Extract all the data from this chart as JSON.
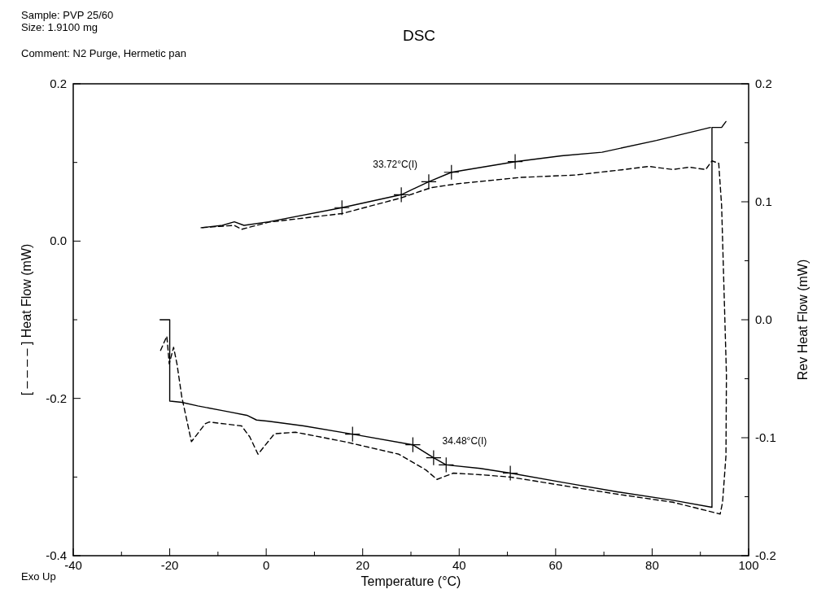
{
  "chart_data": {
    "type": "line",
    "title": "DSC",
    "annotations": [
      "Sample: PVP 25/60",
      "Size:  1.9100 mg",
      "Comment: N2 Purge, Hermetic pan",
      "Exo Up",
      {
        "text": "33.72°C(I)",
        "x": 33.72,
        "y": 0.0745
      },
      {
        "text": "34.48°C(I)",
        "x": 34.48,
        "y": -0.275
      }
    ],
    "xlabel": "Temperature (°C)",
    "ylabel": "[ – – – – ] Heat Flow (mW)",
    "y2label": "Rev Heat Flow (mW)",
    "xlim": [
      -40,
      100
    ],
    "xticks": [
      -40,
      {
        "value": -30,
        "label": null
      },
      -20,
      {
        "value": -10,
        "label": null
      },
      0,
      {
        "value": 10,
        "label": null
      },
      20,
      {
        "value": 30,
        "label": null
      },
      40,
      {
        "value": 50,
        "label": null
      },
      60,
      {
        "value": 70,
        "label": null
      },
      80,
      {
        "value": 90,
        "label": null
      },
      100
    ],
    "ylim": [
      -0.4,
      0.2
    ],
    "yticks": [
      -0.4,
      {
        "value": -0.3,
        "label": null
      },
      -0.2,
      {
        "value": -0.1,
        "label": null
      },
      {
        "value": 0,
        "label": "0.0"
      },
      {
        "value": 0.1,
        "label": null
      },
      0.2
    ],
    "y2lim": [
      -0.2,
      0.2
    ],
    "y2ticks": [
      -0.2,
      {
        "value": -0.15,
        "label": null
      },
      -0.1,
      {
        "value": -0.05,
        "label": null
      },
      {
        "value": 0,
        "label": "0.0"
      },
      {
        "value": 0.05,
        "label": null
      },
      0.1,
      {
        "value": 0.15,
        "label": null
      },
      0.2
    ],
    "grid": false,
    "marker": "none",
    "series": [
      {
        "color": "#000000",
        "axis": "y2",
        "line_style": "solid",
        "x": [
          -22,
          -20,
          -20,
          -19.9,
          -17.5,
          -14.2,
          -9.1,
          -4,
          -2,
          0.5,
          7.8,
          17.9,
          30.4,
          34.7,
          37.3,
          44.4,
          50.6,
          61.7,
          73,
          84.3,
          92.4,
          92.4,
          94.4,
          95.3,
          null,
          -13.5,
          -9.1,
          -6.6,
          -4.6,
          0.5,
          15.7,
          28,
          33.7,
          38.4,
          51.6,
          61.2,
          69.6,
          80.9,
          92.1
        ],
        "values": [
          0,
          0,
          -0.069,
          -0.069,
          -0.07,
          -0.073,
          -0.077,
          -0.081,
          -0.085,
          -0.086,
          -0.09,
          -0.097,
          -0.106,
          -0.117,
          -0.123,
          -0.126,
          -0.13,
          -0.138,
          -0.146,
          -0.153,
          -0.159,
          0.163,
          0.163,
          0.168,
          null,
          0.078,
          0.08,
          0.083,
          0.08,
          0.083,
          0.095,
          0.106,
          0.117,
          0.125,
          0.134,
          0.139,
          0.142,
          0.152,
          0.163
        ]
      },
      {
        "color": "#000000",
        "axis": "y",
        "line_style": "dashed",
        "x": [
          -21.9,
          -20.6,
          -20.1,
          -19.2,
          -18.5,
          -17.5,
          -15.5,
          -12.6,
          -11.8,
          -5.1,
          -3.4,
          -1.7,
          1.7,
          6.1,
          16.2,
          27.5,
          33.1,
          35.4,
          38.8,
          44.4,
          50.6,
          61.7,
          73,
          84.3,
          94.1,
          94.6,
          95.3,
          95.4,
          94.4,
          93.8,
          92.4,
          91.1,
          87.7,
          84.3,
          79.3,
          74.2,
          64.1,
          52.8,
          39.8,
          34.2,
          28,
          15.7,
          0.5,
          -5.1,
          -6.6,
          -13.5
        ],
        "values": [
          -0.139,
          -0.121,
          -0.156,
          -0.135,
          -0.156,
          -0.198,
          -0.255,
          -0.232,
          -0.23,
          -0.235,
          -0.249,
          -0.271,
          -0.245,
          -0.243,
          -0.255,
          -0.271,
          -0.291,
          -0.303,
          -0.295,
          -0.297,
          -0.3,
          -0.311,
          -0.322,
          -0.332,
          -0.347,
          -0.332,
          -0.273,
          -0.17,
          0.045,
          0.099,
          0.102,
          0.091,
          0.094,
          0.091,
          0.095,
          0.091,
          0.084,
          0.081,
          0.073,
          0.068,
          0.055,
          0.035,
          0.024,
          0.015,
          0.02,
          0.017
        ]
      },
      {
        "type": "scatter",
        "marker": "cross",
        "color": "#000000",
        "axis": "y2",
        "x": [
          15.7,
          28,
          33.7,
          38.4,
          51.6,
          17.9,
          30.4,
          34.7,
          37.3,
          50.6
        ],
        "values": [
          0.095,
          0.106,
          0.117,
          0.125,
          0.134,
          -0.097,
          -0.106,
          -0.117,
          -0.123,
          -0.13
        ]
      }
    ]
  }
}
